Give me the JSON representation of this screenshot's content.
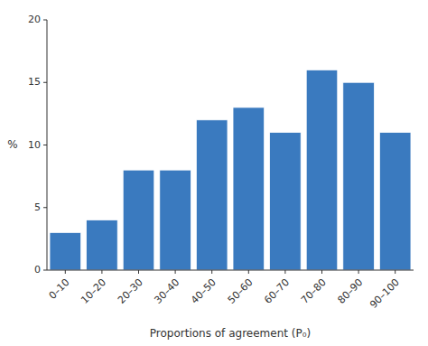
{
  "chart_data": {
    "type": "bar",
    "categories": [
      "0–10",
      "10–20",
      "20–30",
      "30–40",
      "40–50",
      "50–60",
      "60–70",
      "70–80",
      "80–90",
      "90–100"
    ],
    "values": [
      3,
      4,
      8,
      8,
      12,
      13,
      11,
      16,
      15,
      11
    ],
    "color": "#3a7abf",
    "xlabel": "Proportions of agreement (P₀)",
    "ylabel": "%",
    "ylim": [
      0,
      20
    ],
    "yticks": [
      0,
      5,
      10,
      15,
      20
    ],
    "grid": false
  }
}
